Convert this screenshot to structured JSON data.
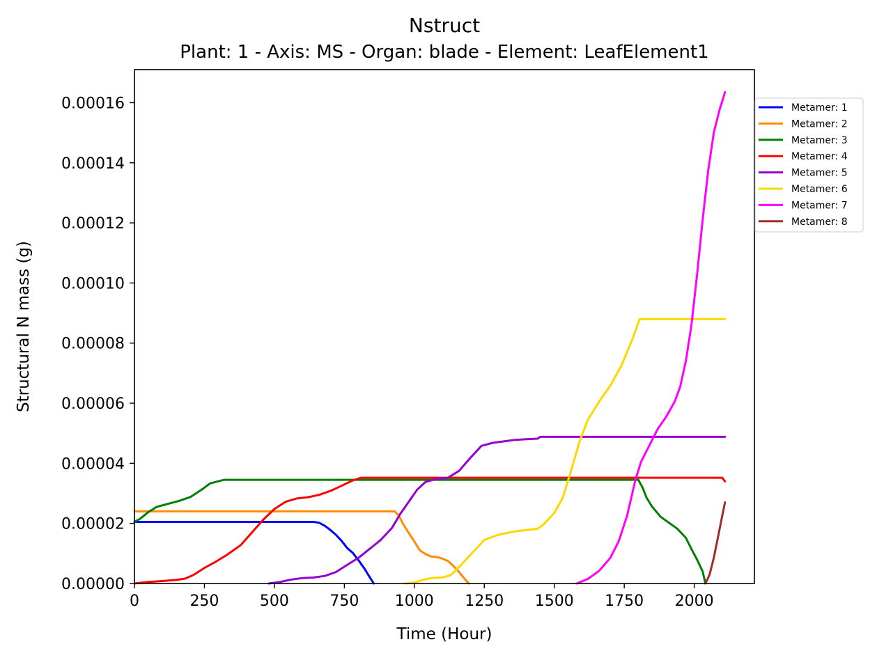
{
  "chart_data": {
    "type": "line",
    "title": "Nstruct",
    "subtitle": "Plant: 1 - Axis: MS - Organ: blade - Element: LeafElement1",
    "xlabel": "Time (Hour)",
    "ylabel": "Structural N mass (g)",
    "xlim": [
      0,
      2215
    ],
    "ylim": [
      0,
      0.000171
    ],
    "xticks": [
      0,
      250,
      500,
      750,
      1000,
      1250,
      1500,
      1750,
      2000
    ],
    "xtick_labels": [
      "0",
      "250",
      "500",
      "750",
      "1000",
      "1250",
      "1500",
      "1750",
      "2000"
    ],
    "yticks": [
      0,
      2e-05,
      4e-05,
      6e-05,
      8e-05,
      0.0001,
      0.00012,
      0.00014,
      0.00016
    ],
    "ytick_labels": [
      "0.00000",
      "0.00002",
      "0.00004",
      "0.00006",
      "0.00008",
      "0.00010",
      "0.00012",
      "0.00014",
      "0.00016"
    ],
    "grid": false,
    "legend_position": "outside-right",
    "series": [
      {
        "name": "Metamer: 1",
        "color": "#0000ff",
        "x": [
          0,
          640,
          660,
          680,
          700,
          720,
          740,
          760,
          780,
          800,
          820,
          840,
          855
        ],
        "y": [
          2.05e-05,
          2.05e-05,
          2.02e-05,
          1.92e-05,
          1.78e-05,
          1.62e-05,
          1.42e-05,
          1.18e-05,
          1.02e-05,
          7.8e-06,
          5.2e-06,
          2.2e-06,
          0
        ]
      },
      {
        "name": "Metamer: 2",
        "color": "#ff8c00",
        "x": [
          0,
          930,
          945,
          960,
          980,
          1000,
          1020,
          1040,
          1060,
          1080,
          1100,
          1120,
          1140,
          1160,
          1180,
          1195
        ],
        "y": [
          2.4e-05,
          2.4e-05,
          2.25e-05,
          1.98e-05,
          1.68e-05,
          1.4e-05,
          1.1e-05,
          9.8e-06,
          9e-06,
          8.8e-06,
          8.3e-06,
          7.5e-06,
          5.8e-06,
          3.8e-06,
          1.5e-06,
          0
        ]
      },
      {
        "name": "Metamer: 3",
        "color": "#008000",
        "x": [
          0,
          20,
          50,
          80,
          120,
          160,
          200,
          240,
          270,
          320,
          600,
          900,
          1200,
          1500,
          1800,
          1815,
          1830,
          1850,
          1880,
          1910,
          1940,
          1970,
          1990,
          2010,
          2030,
          2040
        ],
        "y": [
          2.05e-05,
          2.15e-05,
          2.38e-05,
          2.55e-05,
          2.65e-05,
          2.75e-05,
          2.88e-05,
          3.12e-05,
          3.33e-05,
          3.45e-05,
          3.45e-05,
          3.45e-05,
          3.45e-05,
          3.45e-05,
          3.45e-05,
          3.2e-05,
          2.85e-05,
          2.55e-05,
          2.22e-05,
          2.02e-05,
          1.82e-05,
          1.52e-05,
          1.15e-05,
          8e-06,
          4e-06,
          0
        ]
      },
      {
        "name": "Metamer: 4",
        "color": "#ff0000",
        "x": [
          0,
          50,
          100,
          150,
          180,
          210,
          250,
          290,
          330,
          380,
          420,
          460,
          500,
          540,
          580,
          620,
          660,
          700,
          740,
          780,
          810,
          1000,
          1500,
          2100,
          2110
        ],
        "y": [
          0,
          5e-07,
          8e-07,
          1.2e-06,
          1.6e-06,
          2.8e-06,
          5.2e-06,
          7.2e-06,
          9.5e-06,
          1.28e-05,
          1.7e-05,
          2.12e-05,
          2.48e-05,
          2.72e-05,
          2.83e-05,
          2.87e-05,
          2.95e-05,
          3.08e-05,
          3.25e-05,
          3.43e-05,
          3.52e-05,
          3.52e-05,
          3.52e-05,
          3.52e-05,
          3.4e-05
        ]
      },
      {
        "name": "Metamer: 5",
        "color": "#9400d3",
        "x": [
          480,
          520,
          560,
          600,
          640,
          680,
          720,
          760,
          800,
          840,
          880,
          920,
          950,
          980,
          1010,
          1040,
          1080,
          1120,
          1160,
          1200,
          1240,
          1280,
          1320,
          1360,
          1400,
          1440,
          1450,
          2110
        ],
        "y": [
          0,
          5e-07,
          1.3e-06,
          1.8e-06,
          2e-06,
          2.5e-06,
          3.8e-06,
          6.2e-06,
          8.5e-06,
          1.15e-05,
          1.45e-05,
          1.85e-05,
          2.32e-05,
          2.72e-05,
          3.12e-05,
          3.38e-05,
          3.48e-05,
          3.52e-05,
          3.75e-05,
          4.18e-05,
          4.58e-05,
          4.68e-05,
          4.73e-05,
          4.78e-05,
          4.8e-05,
          4.82e-05,
          4.88e-05,
          4.88e-05
        ]
      },
      {
        "name": "Metamer: 6",
        "color": "#ffd700",
        "x": [
          970,
          1000,
          1030,
          1060,
          1100,
          1130,
          1160,
          1200,
          1250,
          1300,
          1350,
          1400,
          1440,
          1460,
          1500,
          1530,
          1560,
          1590,
          1620,
          1660,
          1700,
          1740,
          1780,
          1805,
          2110
        ],
        "y": [
          0,
          3e-07,
          1.2e-06,
          1.8e-06,
          2e-06,
          2.8e-06,
          5.5e-06,
          9.5e-06,
          1.45e-05,
          1.62e-05,
          1.72e-05,
          1.78e-05,
          1.82e-05,
          1.95e-05,
          2.35e-05,
          2.85e-05,
          3.75e-05,
          4.72e-05,
          5.45e-05,
          6.05e-05,
          6.58e-05,
          7.25e-05,
          8.15e-05,
          8.8e-05,
          8.8e-05
        ]
      },
      {
        "name": "Metamer: 7",
        "color": "#ff00ff",
        "x": [
          1580,
          1620,
          1660,
          1700,
          1730,
          1760,
          1790,
          1810,
          1840,
          1870,
          1900,
          1930,
          1950,
          1970,
          1990,
          2010,
          2030,
          2050,
          2070,
          2090,
          2110
        ],
        "y": [
          0,
          1.5e-06,
          4.2e-06,
          8.5e-06,
          1.4e-05,
          2.25e-05,
          3.45e-05,
          4.05e-05,
          4.6e-05,
          5.15e-05,
          5.55e-05,
          6.05e-05,
          6.55e-05,
          7.4e-05,
          8.6e-05,
          0.0001025,
          0.000121,
          0.0001375,
          0.00015,
          0.0001575,
          0.0001635
        ]
      },
      {
        "name": "Metamer: 8",
        "color": "#a52a2a",
        "x": [
          2040,
          2055,
          2070,
          2085,
          2100,
          2110
        ],
        "y": [
          0,
          3e-06,
          8.5e-06,
          1.55e-05,
          2.25e-05,
          2.7e-05
        ]
      }
    ]
  }
}
